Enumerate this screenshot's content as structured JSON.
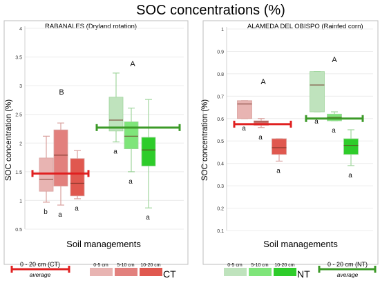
{
  "title": "SOC concentrations (%)",
  "colors": {
    "ct_avg": "#e02020",
    "nt_avg": "#3c9a28",
    "ct_depths": [
      "#e8b4b2",
      "#e2807d",
      "#e0584f"
    ],
    "nt_depths": [
      "#bfe3bd",
      "#7fe57a",
      "#2ecc2a"
    ],
    "box_stroke_ct": "#d9a09d",
    "box_stroke_nt": "#9fd59c"
  },
  "chart_data": [
    {
      "type": "boxplot",
      "title": "RABANALES (Dryland rotation)",
      "ylabel": "SOC concentration (%)",
      "xlabel": "Soil managements",
      "ylim": [
        0.5,
        4
      ],
      "yticks": [
        "0.5",
        "1",
        "1.5",
        "2",
        "2.5",
        "3",
        "3.5",
        "4"
      ],
      "groups": [
        {
          "name": "CT",
          "group_letter": "B",
          "average": 1.47,
          "boxes": [
            {
              "depth": "0-5 cm",
              "min": 0.97,
              "q1": 1.16,
              "median": 1.37,
              "q3": 1.74,
              "max": 2.12,
              "letter": "b"
            },
            {
              "depth": "5-10 cm",
              "min": 0.92,
              "q1": 1.25,
              "median": 1.79,
              "q3": 2.23,
              "max": 2.35,
              "letter": "a"
            },
            {
              "depth": "10-20 cm",
              "min": 1.03,
              "q1": 1.08,
              "median": 1.3,
              "q3": 1.73,
              "max": 1.87,
              "letter": "a"
            }
          ]
        },
        {
          "name": "NT",
          "group_letter": "A",
          "average": 2.27,
          "boxes": [
            {
              "depth": "0-5 cm",
              "min": 2.02,
              "q1": 2.21,
              "median": 2.4,
              "q3": 2.8,
              "max": 3.22,
              "letter": "a"
            },
            {
              "depth": "5-10 cm",
              "min": 1.5,
              "q1": 1.9,
              "median": 2.12,
              "q3": 2.37,
              "max": 2.61,
              "letter": "a"
            },
            {
              "depth": "10-20 cm",
              "min": 0.87,
              "q1": 1.6,
              "median": 1.88,
              "q3": 2.1,
              "max": 2.76,
              "letter": "a"
            }
          ]
        }
      ]
    },
    {
      "type": "boxplot",
      "title": "ALAMEDA DEL OBISPO (Rainfed corn)",
      "ylabel": "SOC concentration (%)",
      "xlabel": "Soil managements",
      "ylim": [
        0.1,
        1
      ],
      "yticks": [
        "0.1",
        "0.2",
        "0.3",
        "0.4",
        "0.5",
        "0.6",
        "0.7",
        "0.8",
        "0.9",
        "1"
      ],
      "groups": [
        {
          "name": "CT",
          "group_letter": "A",
          "average": 0.575,
          "boxes": [
            {
              "depth": "0-5 cm",
              "min": 0.6,
              "q1": 0.6,
              "median": 0.665,
              "q3": 0.68,
              "max": 0.68,
              "letter": "a"
            },
            {
              "depth": "5-10 cm",
              "min": 0.56,
              "q1": 0.57,
              "median": 0.585,
              "q3": 0.59,
              "max": 0.6,
              "letter": "a"
            },
            {
              "depth": "10-20 cm",
              "min": 0.41,
              "q1": 0.44,
              "median": 0.47,
              "q3": 0.51,
              "max": 0.51,
              "letter": "a"
            }
          ]
        },
        {
          "name": "NT",
          "group_letter": "A",
          "average": 0.6,
          "boxes": [
            {
              "depth": "0-5 cm",
              "min": 0.63,
              "q1": 0.63,
              "median": 0.75,
              "q3": 0.81,
              "max": 0.81,
              "letter": "a"
            },
            {
              "depth": "5-10 cm",
              "min": 0.59,
              "q1": 0.59,
              "median": 0.605,
              "q3": 0.62,
              "max": 0.63,
              "letter": "a"
            },
            {
              "depth": "10-20 cm",
              "min": 0.39,
              "q1": 0.44,
              "median": 0.48,
              "q3": 0.51,
              "max": 0.55,
              "letter": "a"
            }
          ]
        }
      ]
    }
  ],
  "legend": {
    "ct_avg_label": "0 - 20 cm (CT)",
    "nt_avg_label": "0 - 20 cm (NT)",
    "avg_word": "average",
    "depths": [
      "0-5 cm",
      "5-10 cm",
      "10-20 cm"
    ],
    "ct_label": "CT",
    "nt_label": "NT"
  }
}
